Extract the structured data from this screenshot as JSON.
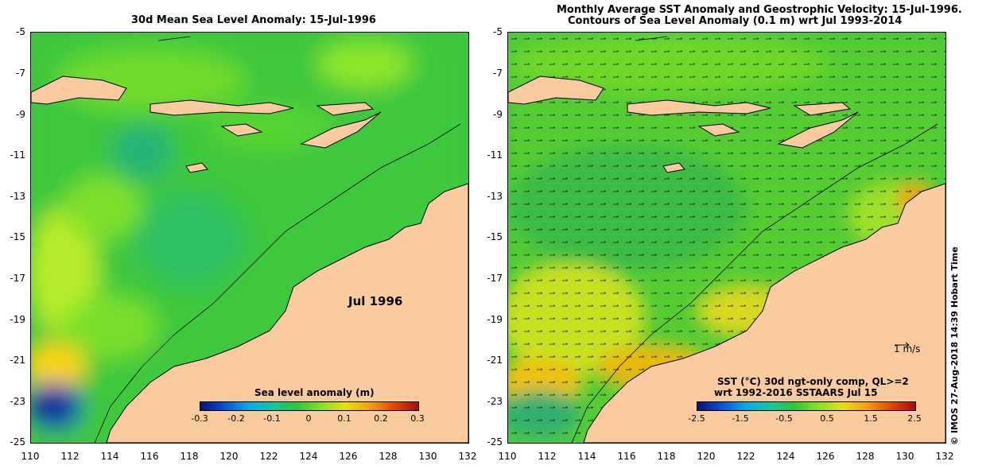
{
  "left_map": {
    "title": "30d Mean Sea Level Anomaly: 15-Jul-1996",
    "month_label": "Jul 1996",
    "colorbar": {
      "label": "Sea level anomaly (m)",
      "ticks": [
        "-0.3",
        "-0.2",
        "-0.1",
        "0",
        "0.1",
        "0.2",
        "0.3"
      ]
    }
  },
  "right_map": {
    "title_line1": "Monthly Average SST Anomaly  and Geostrophic Velocity: 15-Jul-1996.",
    "title_line2": "Contours of Sea Level Anomaly (0.1 m) wrt Jul 1993-2014",
    "scale_label": "1 m/s",
    "colorbar": {
      "label_line1": "SST (°C) 30d ngt-only comp, QL>=2",
      "label_line2": "wrt 1992-2016 SSTAARS Jul 15",
      "ticks": [
        "-2.5",
        "-1.5",
        "-0.5",
        "0.5",
        "1.5",
        "2.5"
      ]
    }
  },
  "axes": {
    "lat_ticks": [
      "-5",
      "-7",
      "-9",
      "-11",
      "-13",
      "-15",
      "-17",
      "-19",
      "-21",
      "-23",
      "-25"
    ],
    "lon_ticks": [
      "110",
      "112",
      "114",
      "116",
      "118",
      "120",
      "122",
      "124",
      "126",
      "128",
      "130",
      "132"
    ]
  },
  "credit": "© IMOS 27-Aug-2018 14:39 Hobart Time",
  "colors": {
    "land": "#fbcba0",
    "ocean_base": "#33cc33",
    "ocean_light": "#66dd22",
    "coast": "#000000"
  },
  "icons": [
    "arrow-right-icon"
  ]
}
